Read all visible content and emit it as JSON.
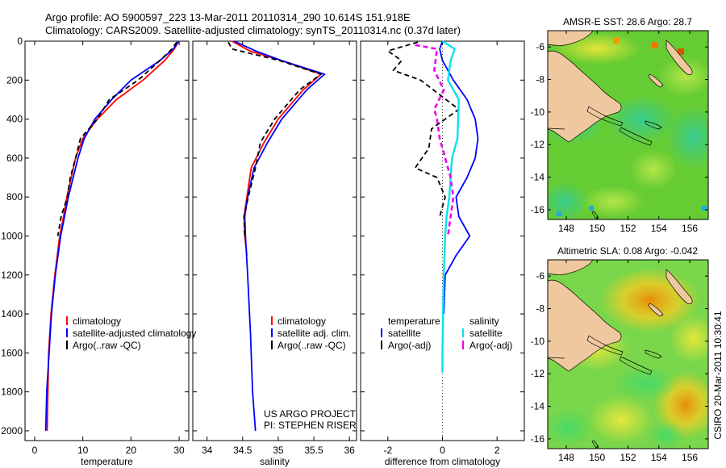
{
  "header": {
    "title_line1": "Argo profile: AO 5900597_223 13-Mar-2011 20110314_290 10.614S 151.918E",
    "title_line2": "Climatology: CARS2009. Satellite-adjusted climatology: synTS_20110314.nc (0.37d later)"
  },
  "project_note": {
    "line1": "US ARGO PROJECT",
    "line2": "PI: STEPHEN RISER"
  },
  "side_label": "CSIRO 20-Mar-2011 10:30:41",
  "colors": {
    "climatology": "#ff0000",
    "satellite": "#0000ff",
    "argo": "#000000",
    "sat_salinity": "#00e5ee",
    "argo_salinity": "#ee00ee"
  },
  "chart_data": [
    {
      "type": "line",
      "panel": "temperature",
      "xlabel": "temperature",
      "ylabel": "",
      "xlim": [
        -2,
        32
      ],
      "ylim": [
        2050,
        0
      ],
      "xticks": [
        0,
        10,
        20,
        30
      ],
      "yticks": [
        0,
        200,
        400,
        600,
        800,
        1000,
        1200,
        1400,
        1600,
        1800,
        2000
      ],
      "legend": [
        "climatology",
        "satellite-adjusted climatology",
        "Argo(..raw -QC)"
      ],
      "series": [
        {
          "name": "climatology",
          "color": "#ff0000",
          "dash": "",
          "x": [
            29.9,
            29.0,
            27.0,
            22.5,
            17.0,
            13.0,
            10.0,
            8.5,
            7.6,
            6.7,
            6.0,
            5.2,
            4.2,
            3.4,
            2.9,
            2.6
          ],
          "y": [
            0,
            40,
            100,
            200,
            300,
            400,
            500,
            600,
            700,
            800,
            900,
            1000,
            1200,
            1400,
            1600,
            2000
          ]
        },
        {
          "name": "satellite",
          "color": "#0000ff",
          "dash": "",
          "x": [
            29.9,
            28.8,
            26.0,
            20.0,
            16.0,
            12.5,
            10.3,
            9.0,
            8.0,
            7.0,
            6.2,
            5.4,
            4.3,
            3.5,
            3.0,
            2.5,
            2.3
          ],
          "y": [
            0,
            40,
            100,
            200,
            300,
            400,
            500,
            600,
            700,
            800,
            900,
            1000,
            1200,
            1400,
            1600,
            1800,
            2000
          ]
        },
        {
          "name": "Argo",
          "color": "#000000",
          "dash": "6,4",
          "x": [
            29.5,
            28.5,
            26.0,
            21.5,
            15.5,
            13.0,
            9.5,
            8.5,
            7.4,
            6.8,
            5.5,
            4.8
          ],
          "y": [
            5,
            40,
            100,
            200,
            300,
            400,
            500,
            600,
            700,
            800,
            900,
            1000
          ]
        }
      ]
    },
    {
      "type": "line",
      "panel": "salinity",
      "xlabel": "salinity",
      "ylabel": "",
      "xlim": [
        33.8,
        36.1
      ],
      "ylim": [
        2050,
        0
      ],
      "xticks": [
        34,
        34.5,
        35,
        35.5,
        36
      ],
      "yticks": [
        0,
        200,
        400,
        600,
        800,
        1000,
        1200,
        1400,
        1600,
        1800,
        2000
      ],
      "legend": [
        "climatology",
        "satellite adj. clim.",
        "Argo(..raw -QC)"
      ],
      "series": [
        {
          "name": "climatology",
          "color": "#ff0000",
          "dash": "",
          "x": [
            34.35,
            34.6,
            35.05,
            35.6,
            35.35,
            35.0,
            34.8,
            34.62,
            34.56,
            34.52,
            34.53,
            34.56
          ],
          "y": [
            0,
            50,
            100,
            170,
            250,
            400,
            520,
            650,
            800,
            900,
            1000,
            1100
          ]
        },
        {
          "name": "satellite",
          "color": "#0000ff",
          "dash": "",
          "x": [
            34.38,
            34.68,
            35.05,
            35.65,
            35.4,
            35.05,
            34.85,
            34.66,
            34.57,
            34.53,
            34.54,
            34.57,
            34.61,
            34.64,
            34.68
          ],
          "y": [
            0,
            50,
            100,
            170,
            250,
            400,
            520,
            650,
            800,
            900,
            1000,
            1200,
            1500,
            1800,
            2000
          ]
        },
        {
          "name": "Argo",
          "color": "#000000",
          "dash": "6,4",
          "x": [
            34.3,
            34.35,
            35.02,
            35.6,
            35.3,
            34.95,
            34.75,
            34.68,
            34.58,
            34.52,
            34.53
          ],
          "y": [
            5,
            40,
            100,
            170,
            250,
            400,
            520,
            650,
            800,
            900,
            1000
          ]
        }
      ]
    },
    {
      "type": "line",
      "panel": "difference",
      "xlabel": "difference from climatology",
      "ylabel": "",
      "xlim": [
        -3.0,
        3.0
      ],
      "ylim": [
        2050,
        0
      ],
      "xticks": [
        -2,
        0,
        2
      ],
      "yticks": [
        0,
        200,
        400,
        600,
        800,
        1000,
        1200,
        1400,
        1600,
        1800,
        2000
      ],
      "legend_headers": [
        "temperature",
        "salinity"
      ],
      "legend": [
        "satellite",
        "Argo(-adj)",
        "satellite",
        "Argo(-adj)"
      ],
      "series": [
        {
          "name": "temperature satellite",
          "color": "#0000ff",
          "dash": "",
          "x": [
            0.0,
            -0.1,
            0.0,
            0.4,
            0.9,
            1.2,
            1.3,
            1.2,
            0.9,
            0.5,
            0.6,
            1.0,
            0.5,
            0.1,
            0.05
          ],
          "y": [
            0,
            40,
            100,
            200,
            300,
            400,
            500,
            600,
            700,
            800,
            900,
            1000,
            1100,
            1200,
            1400
          ]
        },
        {
          "name": "temperature Argo",
          "color": "#000000",
          "dash": "6,4",
          "x": [
            -0.9,
            -2.0,
            -1.5,
            -1.8,
            -0.8,
            0.6,
            -0.4,
            -0.5,
            -1.0,
            -0.2,
            0.1,
            -0.1
          ],
          "y": [
            5,
            50,
            100,
            150,
            200,
            350,
            450,
            550,
            650,
            700,
            800,
            900
          ]
        },
        {
          "name": "salinity satellite",
          "color": "#00e5ee",
          "dash": "",
          "x": [
            0.0,
            0.45,
            0.3,
            0.2,
            0.6,
            0.55,
            0.35,
            0.25,
            0.15,
            0.1,
            0.05,
            0.02,
            0.0,
            0.0
          ],
          "y": [
            0,
            40,
            100,
            200,
            300,
            500,
            600,
            800,
            900,
            1000,
            1200,
            1400,
            1600,
            1700
          ]
        },
        {
          "name": "salinity Argo",
          "color": "#ee00ee",
          "dash": "6,4",
          "x": [
            -1.0,
            -0.2,
            -0.3,
            0.05,
            -0.3,
            -0.2,
            -0.1,
            0.1,
            0.3,
            0.4,
            0.3,
            0.2
          ],
          "y": [
            20,
            40,
            150,
            250,
            350,
            400,
            500,
            600,
            700,
            800,
            900,
            1000
          ]
        }
      ]
    },
    {
      "type": "heatmap",
      "panel": "sst_map",
      "title": "AMSR-E SST: 28.6 Argo: 28.7",
      "xlim": [
        146.8,
        157.2
      ],
      "ylim": [
        -16.6,
        -5.0
      ],
      "xticks": [
        148,
        150,
        152,
        154,
        156
      ],
      "yticks": [
        -6,
        -8,
        -10,
        -12,
        -14,
        -16
      ],
      "float_position": [
        151.918,
        -10.614
      ]
    },
    {
      "type": "heatmap",
      "panel": "sla_map",
      "title": "Altimetric SLA: 0.08 Argo: -0.042",
      "xlim": [
        146.8,
        157.2
      ],
      "ylim": [
        -16.6,
        -5.0
      ],
      "xticks": [
        148,
        150,
        152,
        154,
        156
      ],
      "yticks": [
        -6,
        -8,
        -10,
        -12,
        -14,
        -16
      ],
      "float_position": [
        151.918,
        -10.614
      ]
    }
  ]
}
